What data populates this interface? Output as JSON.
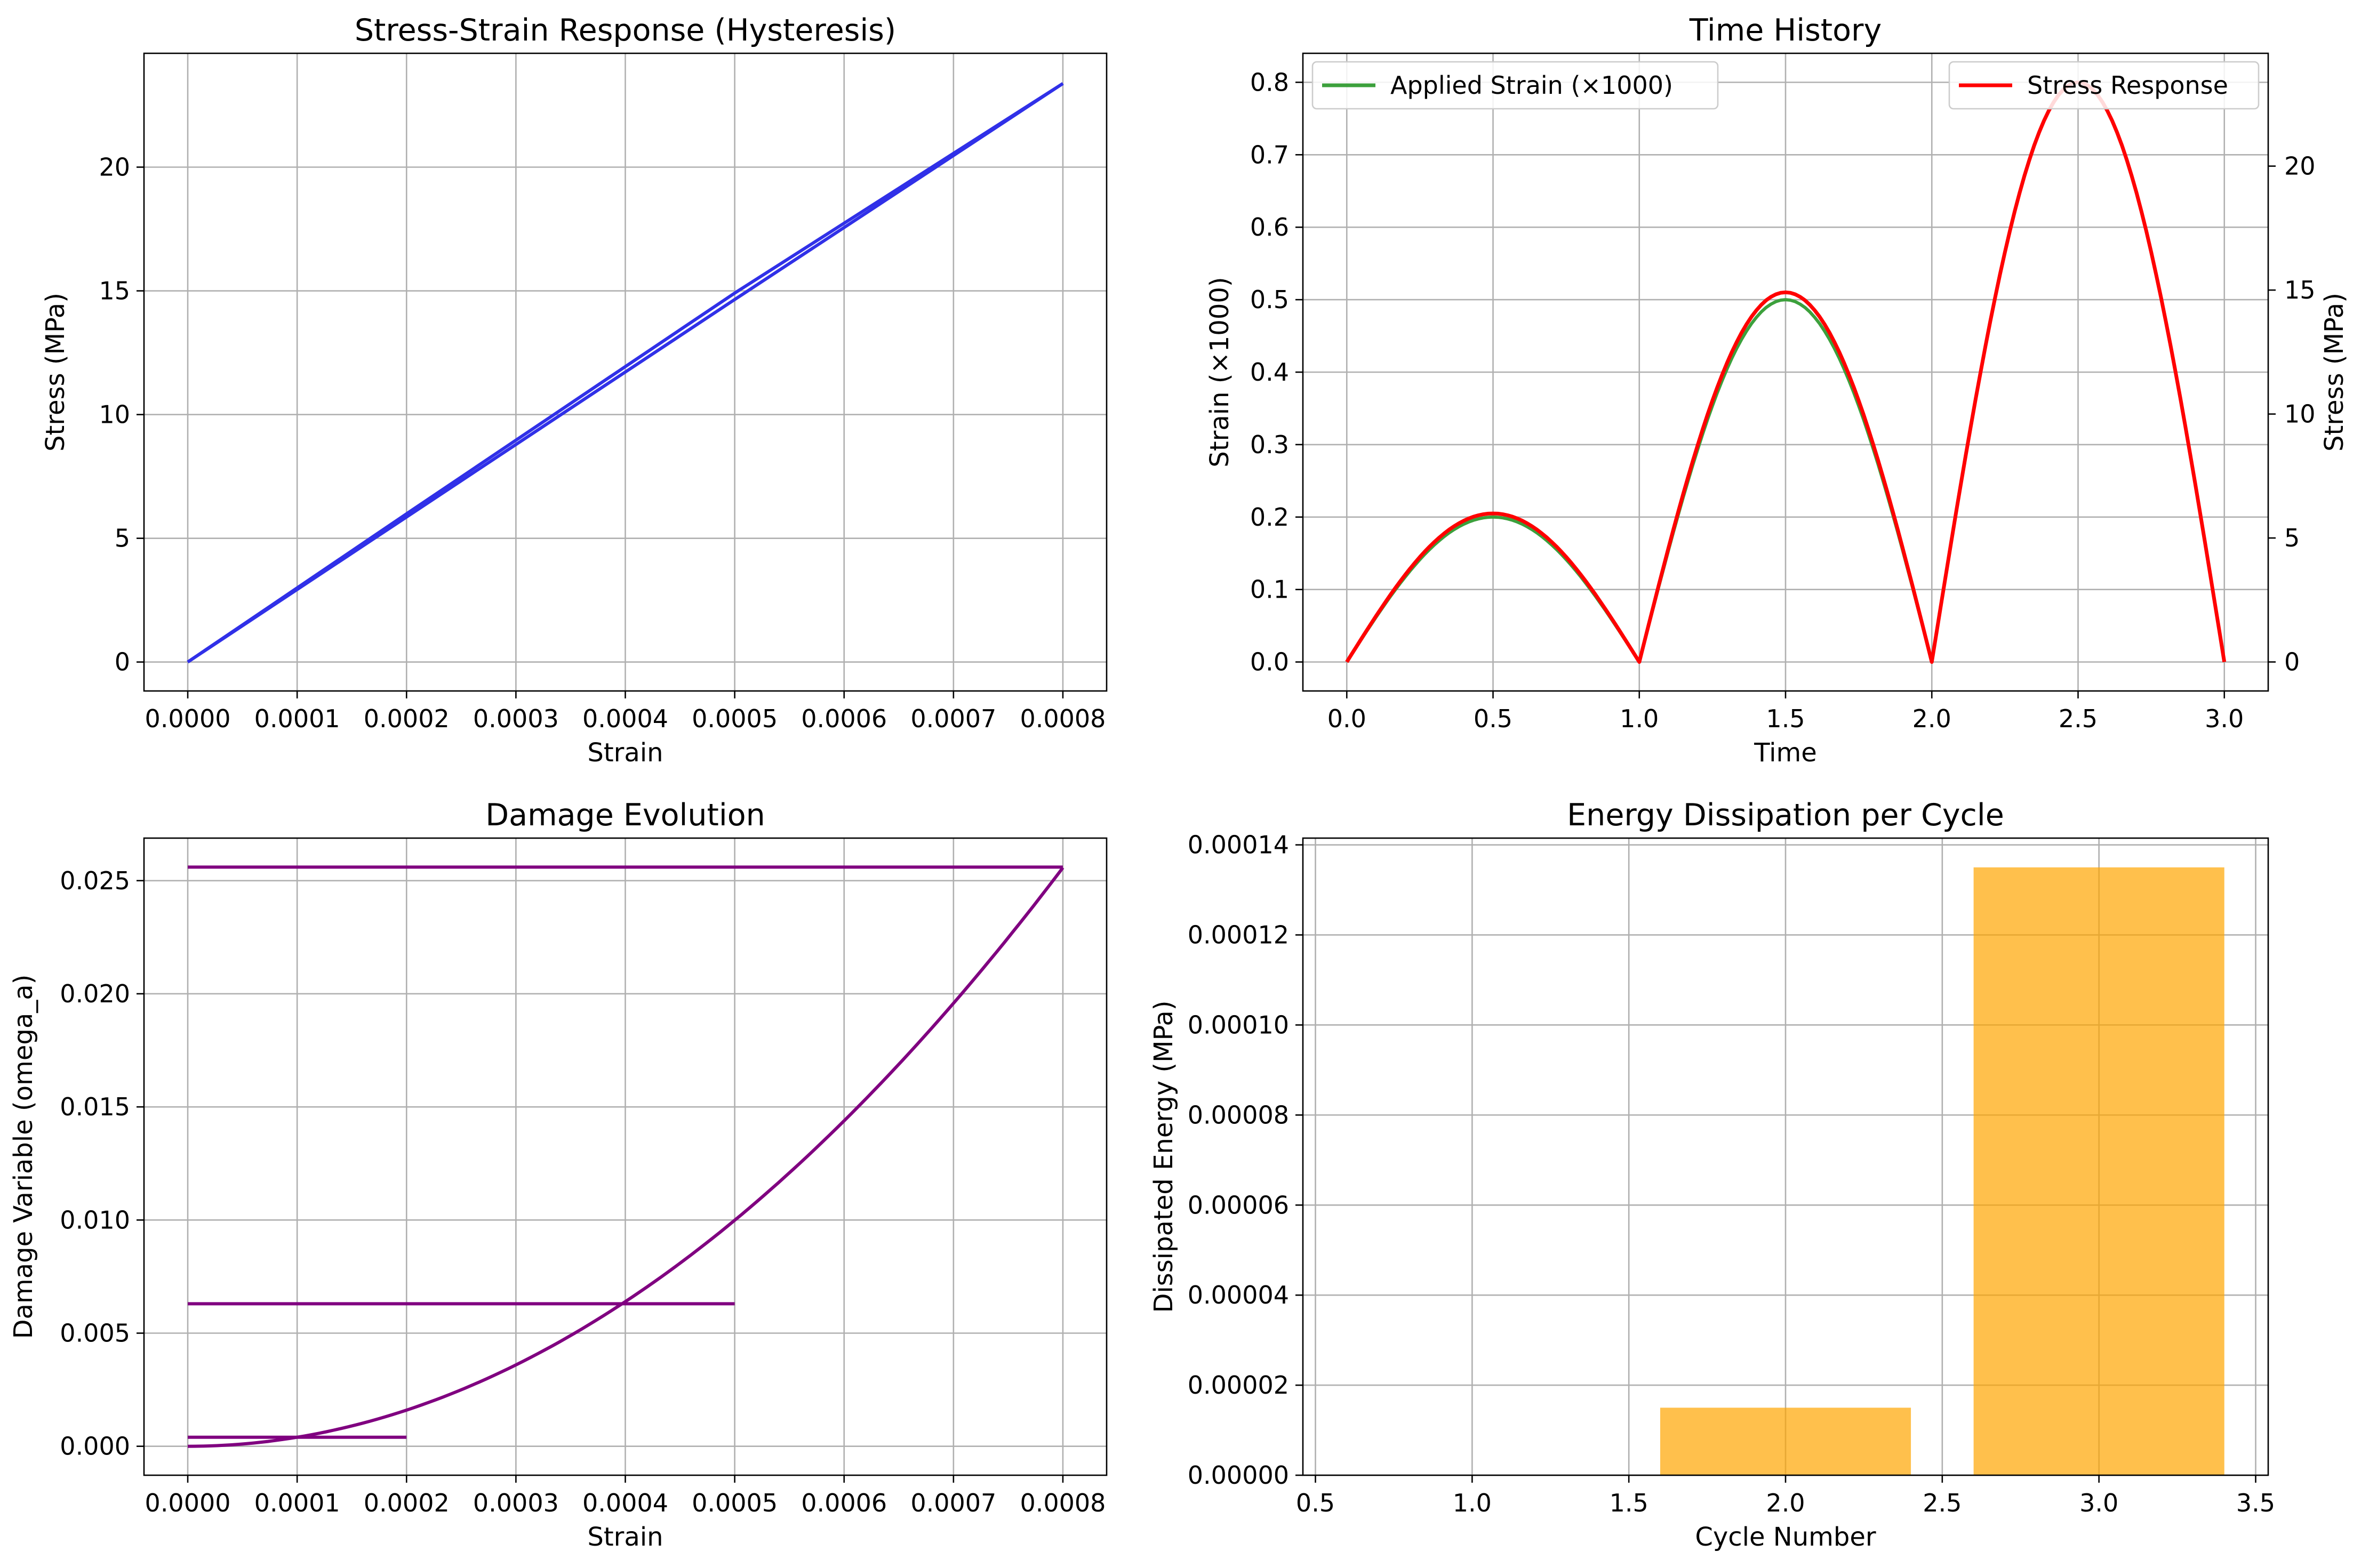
{
  "chart_data": [
    {
      "id": "hysteresis",
      "type": "line",
      "title": "Stress-Strain Response (Hysteresis)",
      "xlabel": "Strain",
      "ylabel": "Stress (MPa)",
      "xlim": [
        -4e-05,
        0.00084
      ],
      "ylim": [
        -1.17,
        24.6
      ],
      "xticks": [
        0,
        0.0001,
        0.0002,
        0.0003,
        0.0004,
        0.0005,
        0.0006,
        0.0007,
        0.0008
      ],
      "xtick_labels": [
        "0.0000",
        "0.0001",
        "0.0002",
        "0.0003",
        "0.0004",
        "0.0005",
        "0.0006",
        "0.0007",
        "0.0008"
      ],
      "yticks": [
        0,
        5,
        10,
        15,
        20
      ],
      "ytick_labels": [
        "0",
        "5",
        "10",
        "15",
        "20"
      ],
      "grid": true,
      "series": [
        {
          "color": "#3030e8",
          "points": [
            [
              0,
              0
            ],
            [
              0.0002,
              5.99
            ],
            [
              0.0004,
              11.94
            ],
            [
              0.0005,
              14.91
            ],
            [
              0.0008,
              23.38
            ]
          ]
        },
        {
          "color": "#3030e8",
          "points": [
            [
              0.0008,
              23.38
            ],
            [
              0.0005,
              14.65
            ],
            [
              0,
              0
            ]
          ]
        }
      ]
    },
    {
      "id": "time_history",
      "type": "line",
      "title": "Time History",
      "xlabel": "Time",
      "ylabel": "Strain (×1000)",
      "ylabel_right": "Stress (MPa)",
      "ylabel_color": "#008000",
      "ylabel_right_color": "#ff0000",
      "xlim": [
        -0.15,
        3.15
      ],
      "ylim": [
        -0.04,
        0.84
      ],
      "ylim_right": [
        -1.17,
        24.55
      ],
      "xticks": [
        0,
        0.5,
        1,
        1.5,
        2,
        2.5,
        3
      ],
      "xtick_labels": [
        "0.0",
        "0.5",
        "1.0",
        "1.5",
        "2.0",
        "2.5",
        "3.0"
      ],
      "yticks": [
        0,
        0.1,
        0.2,
        0.3,
        0.4,
        0.5,
        0.6,
        0.7,
        0.8
      ],
      "ytick_labels": [
        "0.0",
        "0.1",
        "0.2",
        "0.3",
        "0.4",
        "0.5",
        "0.6",
        "0.7",
        "0.8"
      ],
      "yticks_right": [
        0,
        5,
        10,
        15,
        20
      ],
      "ytick_right_labels": [
        "0",
        "5",
        "10",
        "15",
        "20"
      ],
      "grid": true,
      "series": [
        {
          "name": "Applied Strain (×1000)",
          "color": "#3ca03c",
          "axis": "left",
          "segments": [
            {
              "t_start": 0,
              "t_end": 1,
              "peak": 0.2
            },
            {
              "t_start": 1,
              "t_end": 2,
              "peak": 0.5
            },
            {
              "t_start": 2,
              "t_end": 3,
              "peak": 0.8
            }
          ]
        },
        {
          "name": "Stress Response",
          "color": "#ff0000",
          "axis": "right",
          "segments": [
            {
              "t_start": 0,
              "t_end": 1,
              "peak": 5.99
            },
            {
              "t_start": 1,
              "t_end": 2,
              "peak": 14.91
            },
            {
              "t_start": 2,
              "t_end": 3,
              "peak": 23.38
            }
          ]
        }
      ],
      "legend": [
        {
          "label": "Applied Strain (×1000)",
          "color": "#3ca03c",
          "placement": "upper-left"
        },
        {
          "label": "Stress Response",
          "color": "#ff0000",
          "placement": "upper-right"
        }
      ]
    },
    {
      "id": "damage",
      "type": "line",
      "title": "Damage Evolution",
      "xlabel": "Strain",
      "ylabel": "Damage Variable (omega_a)",
      "xlim": [
        -4e-05,
        0.00084
      ],
      "ylim": [
        -0.00128,
        0.02688
      ],
      "xticks": [
        0,
        0.0001,
        0.0002,
        0.0003,
        0.0004,
        0.0005,
        0.0006,
        0.0007,
        0.0008
      ],
      "xtick_labels": [
        "0.0000",
        "0.0001",
        "0.0002",
        "0.0003",
        "0.0004",
        "0.0005",
        "0.0006",
        "0.0007",
        "0.0008"
      ],
      "yticks": [
        0,
        0.005,
        0.01,
        0.015,
        0.02,
        0.025
      ],
      "ytick_labels": [
        "0.000",
        "0.005",
        "0.010",
        "0.015",
        "0.020",
        "0.025"
      ],
      "grid": true,
      "color": "#800080",
      "curve": {
        "coefficient": 39960,
        "exponent": 2,
        "x_max": 0.0008
      },
      "plateaus": [
        {
          "x_from": 0.0002,
          "x_to": 0,
          "value": 0.0004
        },
        {
          "x_from": 0.0005,
          "x_to": 0,
          "value": 0.0063
        },
        {
          "x_from": 0.0008,
          "x_to": 0,
          "value": 0.0256
        }
      ]
    },
    {
      "id": "energy",
      "type": "bar",
      "title": "Energy Dissipation per Cycle",
      "xlabel": "Cycle Number",
      "ylabel": "Dissipated Energy (MPa)",
      "xlim": [
        0.46,
        3.54
      ],
      "ylim": [
        0,
        0.0001415
      ],
      "xticks": [
        0.5,
        1,
        1.5,
        2,
        2.5,
        3,
        3.5
      ],
      "xtick_labels": [
        "0.5",
        "1.0",
        "1.5",
        "2.0",
        "2.5",
        "3.0",
        "3.5"
      ],
      "yticks": [
        0,
        2e-05,
        4e-05,
        6e-05,
        8e-05,
        0.0001,
        0.00012,
        0.00014
      ],
      "ytick_labels": [
        "0.00000",
        "0.00002",
        "0.00004",
        "0.00006",
        "0.00008",
        "0.00010",
        "0.00012",
        "0.00014"
      ],
      "grid": true,
      "bar_color": "#ffa500",
      "bar_alpha": 0.7,
      "bar_width": 0.8,
      "categories": [
        1,
        2,
        3
      ],
      "values": [
        0,
        1.5e-05,
        0.000135
      ]
    }
  ]
}
